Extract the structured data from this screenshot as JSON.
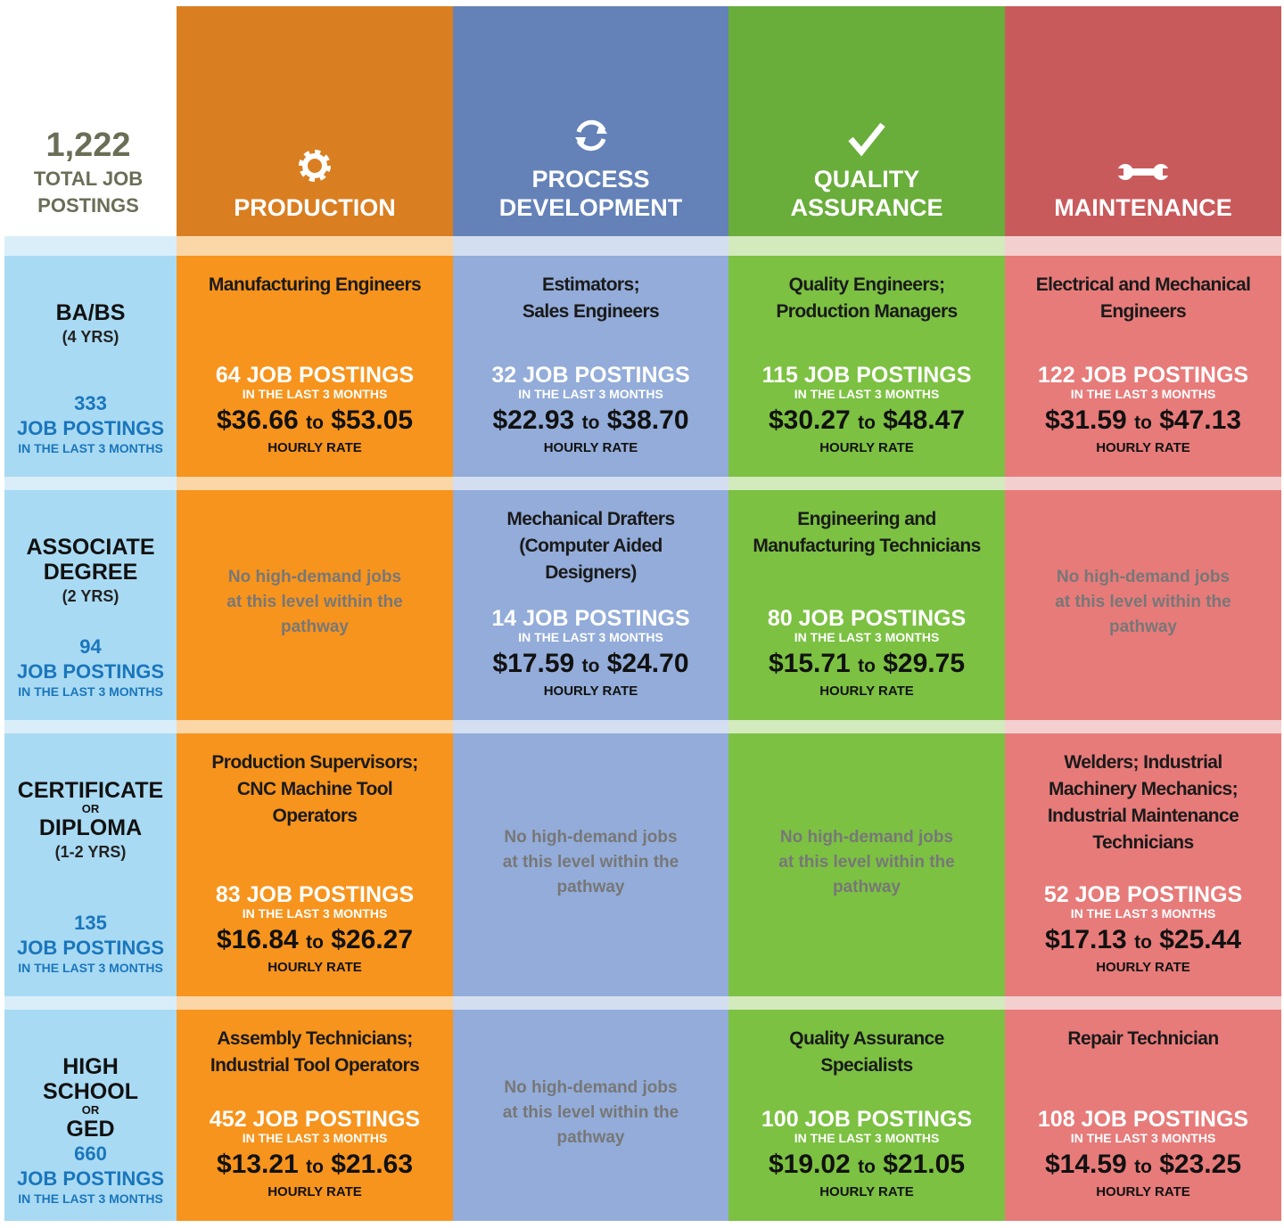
{
  "total": {
    "number": "1,222",
    "label": "TOTAL JOB POSTINGS"
  },
  "columns": [
    {
      "title": [
        "PRODUCTION"
      ],
      "color": "#f7941d",
      "header_color": "#d97f22",
      "band_color": "#fbd6a6"
    },
    {
      "title": [
        "PROCESS",
        "DEVELOPMENT"
      ],
      "color": "#93acd9",
      "header_color": "#6482b8",
      "band_color": "#d4def1"
    },
    {
      "title": [
        "QUALITY",
        "ASSURANCE"
      ],
      "color": "#7cc142",
      "header_color": "#69ad3a",
      "band_color": "#d3eabd"
    },
    {
      "title": [
        "MAINTENANCE"
      ],
      "color": "#e77b7a",
      "header_color": "#c95a5c",
      "band_color": "#f4cfcf"
    }
  ],
  "rows": [
    {
      "level": [
        "BA/BS"
      ],
      "years": "(4 YRS)",
      "postings": "333",
      "postings_label": "JOB POSTINGS",
      "period": "IN THE LAST 3 MONTHS",
      "cells": [
        {
          "title": [
            "Manufacturing Engineers"
          ],
          "postings": "64 JOB POSTINGS",
          "period": "IN THE LAST 3 MONTHS",
          "low": "$36.66",
          "to": "to",
          "high": "$53.05",
          "rate": "HOURLY RATE"
        },
        {
          "title": [
            "Estimators;",
            "Sales Engineers"
          ],
          "postings": "32 JOB POSTINGS",
          "period": "IN THE LAST 3 MONTHS",
          "low": "$22.93",
          "to": "to",
          "high": "$38.70",
          "rate": "HOURLY RATE"
        },
        {
          "title": [
            "Quality Engineers;",
            "Production Managers"
          ],
          "postings": "115 JOB POSTINGS",
          "period": "IN THE LAST 3 MONTHS",
          "low": "$30.27",
          "to": "to",
          "high": "$48.47",
          "rate": "HOURLY RATE"
        },
        {
          "title": [
            "Electrical and Mechanical",
            "Engineers"
          ],
          "postings": "122 JOB POSTINGS",
          "period": "IN THE LAST 3 MONTHS",
          "low": "$31.59",
          "to": "to",
          "high": "$47.13",
          "rate": "HOURLY RATE"
        }
      ]
    },
    {
      "level": [
        "ASSOCIATE",
        "DEGREE"
      ],
      "years": "(2 YRS)",
      "postings": "94",
      "postings_label": "JOB POSTINGS",
      "period": "IN THE LAST 3 MONTHS",
      "cells": [
        {
          "note": [
            "No high-demand jobs",
            "at this level within the",
            "pathway"
          ]
        },
        {
          "title": [
            "Mechanical Drafters",
            "(Computer Aided",
            "Designers)"
          ],
          "postings": "14 JOB POSTINGS",
          "period": "IN THE LAST 3 MONTHS",
          "low": "$17.59",
          "to": "to",
          "high": "$24.70",
          "rate": "HOURLY RATE"
        },
        {
          "title": [
            "Engineering and",
            "Manufacturing Technicians"
          ],
          "postings": "80 JOB POSTINGS",
          "period": "IN THE LAST 3 MONTHS",
          "low": "$15.71",
          "to": "to",
          "high": "$29.75",
          "rate": "HOURLY RATE"
        },
        {
          "note": [
            "No high-demand jobs",
            "at this level within the",
            "pathway"
          ]
        }
      ]
    },
    {
      "level": [
        "CERTIFICATE",
        "DIPLOMA"
      ],
      "or": "OR",
      "years": "(1-2 YRS)",
      "postings": "135",
      "postings_label": "JOB POSTINGS",
      "period": "IN THE LAST 3 MONTHS",
      "cells": [
        {
          "title": [
            "Production Supervisors;",
            "CNC Machine Tool",
            "Operators"
          ],
          "postings": "83 JOB POSTINGS",
          "period": "IN THE LAST 3 MONTHS",
          "low": "$16.84",
          "to": "to",
          "high": "$26.27",
          "rate": "HOURLY RATE"
        },
        {
          "note": [
            "No high-demand jobs",
            "at this level within the",
            "pathway"
          ]
        },
        {
          "note": [
            "No high-demand jobs",
            "at this level within the",
            "pathway"
          ]
        },
        {
          "title": [
            "Welders; Industrial",
            "Machinery Mechanics;",
            "Industrial Maintenance",
            "Technicians"
          ],
          "postings": "52 JOB POSTINGS",
          "period": "IN THE LAST 3 MONTHS",
          "low": "$17.13",
          "to": "to",
          "high": "$25.44",
          "rate": "HOURLY RATE"
        }
      ]
    },
    {
      "level": [
        "HIGH",
        "SCHOOL",
        "GED"
      ],
      "or_after": 2,
      "or": "OR",
      "postings": "660",
      "postings_label": "JOB POSTINGS",
      "period": "IN THE LAST 3 MONTHS",
      "cells": [
        {
          "title": [
            "Assembly Technicians;",
            "Industrial Tool Operators"
          ],
          "postings": "452 JOB POSTINGS",
          "period": "IN THE LAST 3 MONTHS",
          "low": "$13.21",
          "to": "to",
          "high": "$21.63",
          "rate": "HOURLY RATE"
        },
        {
          "note": [
            "No high-demand jobs",
            "at this level within the",
            "pathway"
          ]
        },
        {
          "title": [
            "Quality Assurance",
            "Specialists"
          ],
          "postings": "100 JOB POSTINGS",
          "period": "IN THE LAST 3 MONTHS",
          "low": "$19.02",
          "to": "to",
          "high": "$21.05",
          "rate": "HOURLY RATE"
        },
        {
          "title": [
            "Repair Technician"
          ],
          "postings": "108 JOB POSTINGS",
          "period": "IN THE LAST 3 MONTHS",
          "low": "$14.59",
          "to": "to",
          "high": "$23.25",
          "rate": "HOURLY RATE"
        }
      ]
    }
  ]
}
